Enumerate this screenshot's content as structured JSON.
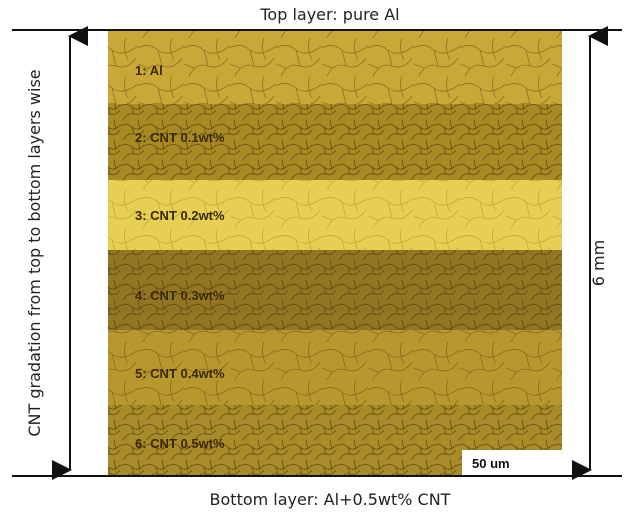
{
  "figure": {
    "top_label": "Top layer: pure Al",
    "bottom_label": "Bottom layer: Al+0.5wt% CNT",
    "left_label": "CNT gradation from top to bottom layers wise",
    "right_label": "6 mm",
    "scale_bar": "50 um",
    "layers": [
      "1: Al",
      "2: CNT 0.1wt%",
      "3: CNT 0.2wt%",
      "4: CNT 0.3wt%",
      "5: CNT 0.4wt%",
      "6: CNT 0.5wt%"
    ]
  }
}
